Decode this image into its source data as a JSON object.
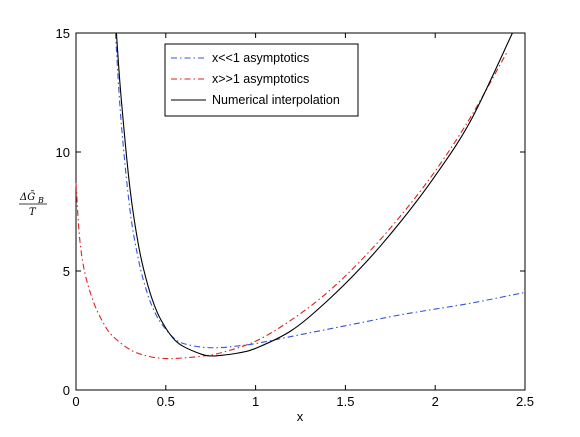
{
  "chart_data": {
    "type": "line",
    "xlabel": "x",
    "ylabel": {
      "numerator": "ΔḠ",
      "subscript": "B",
      "denominator": "T"
    },
    "xlim": [
      0,
      2.5
    ],
    "ylim": [
      0,
      15
    ],
    "xticks": [
      0,
      0.5,
      1,
      1.5,
      2,
      2.5
    ],
    "xtick_labels": [
      "0",
      "0.5",
      "1",
      "1.5",
      "2",
      "2.5"
    ],
    "yticks": [
      0,
      5,
      10,
      15
    ],
    "ytick_labels": [
      "0",
      "5",
      "10",
      "15"
    ],
    "grid": false,
    "legend_placement": "top-center",
    "series": [
      {
        "name": "x<<1 asymptotics",
        "color": "#3355dd",
        "style": "dashdot",
        "x": [
          0.22,
          0.25,
          0.3,
          0.35,
          0.4,
          0.45,
          0.5,
          0.55,
          0.6,
          0.7,
          0.8,
          0.9,
          1.0,
          1.2,
          1.4,
          1.6,
          1.8,
          2.0,
          2.2,
          2.5
        ],
        "y": [
          15.0,
          11.4,
          7.6,
          5.4,
          4.0,
          3.1,
          2.55,
          2.15,
          1.95,
          1.8,
          1.78,
          1.85,
          1.95,
          2.25,
          2.55,
          2.85,
          3.15,
          3.4,
          3.65,
          4.1
        ]
      },
      {
        "name": "x>>1 asymptotics",
        "color": "#dd2222",
        "style": "dashdot",
        "x": [
          0.0,
          0.02,
          0.05,
          0.1,
          0.15,
          0.2,
          0.3,
          0.4,
          0.5,
          0.6,
          0.7,
          0.8,
          1.0,
          1.2,
          1.4,
          1.6,
          1.8,
          2.0,
          2.2,
          2.4
        ],
        "y": [
          8.7,
          6.4,
          4.9,
          3.65,
          2.85,
          2.3,
          1.7,
          1.42,
          1.32,
          1.35,
          1.42,
          1.55,
          2.05,
          2.95,
          4.1,
          5.55,
          7.25,
          9.2,
          11.5,
          14.2
        ]
      },
      {
        "name": "Numerical interpolation",
        "color": "#000000",
        "style": "solid",
        "x": [
          0.225,
          0.25,
          0.3,
          0.35,
          0.4,
          0.45,
          0.5,
          0.55,
          0.6,
          0.7,
          0.75,
          0.8,
          0.9,
          1.0,
          1.2,
          1.4,
          1.6,
          1.8,
          2.0,
          2.2,
          2.43
        ],
        "y": [
          15.0,
          12.4,
          8.5,
          6.0,
          4.4,
          3.3,
          2.6,
          2.1,
          1.82,
          1.5,
          1.43,
          1.45,
          1.55,
          1.75,
          2.5,
          3.75,
          5.25,
          7.0,
          9.0,
          11.35,
          15.0
        ]
      }
    ]
  }
}
